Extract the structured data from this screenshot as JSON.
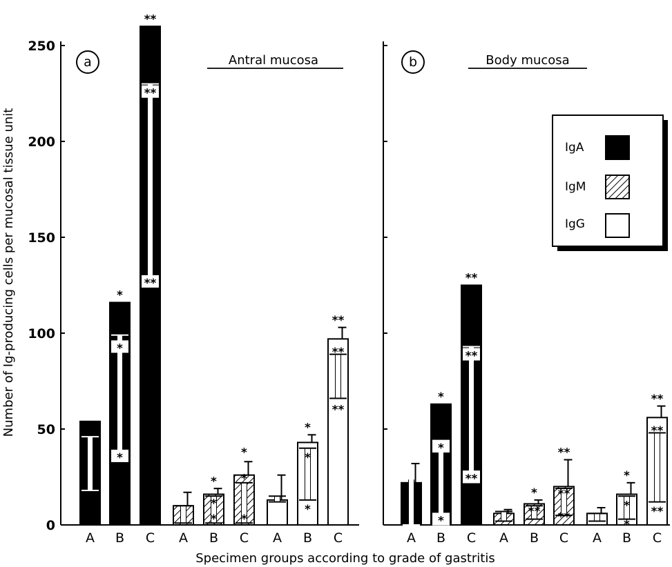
{
  "chart_data": {
    "type": "bar",
    "ylabel": "Number of Ig-producing cells per mucosal tissue unit",
    "xlabel": "Specimen groups according to grade of gastritis",
    "ylim": [
      0,
      260
    ],
    "yticks": [
      0,
      50,
      100,
      150,
      200,
      250
    ],
    "tick_labels": [
      "0",
      "50",
      "100",
      "150",
      "200",
      "250"
    ],
    "categories": [
      "A",
      "B",
      "C"
    ],
    "legend": {
      "placement": "right (panel b)",
      "items": [
        {
          "label": "IgA",
          "fill": "solid black"
        },
        {
          "label": "IgM",
          "fill": "diagonal hatching"
        },
        {
          "label": "IgG",
          "fill": "white"
        }
      ]
    },
    "panels": [
      {
        "letter": "a",
        "title": "Antral mucosa",
        "series": [
          {
            "name": "IgA",
            "values": [
              54,
              116,
              260
            ],
            "inner_bars": [
              [
                18,
                46
              ],
              [
                38,
                99
              ],
              [
                127,
                230
              ]
            ],
            "stars": [
              [],
              [
                [
                  "*",
                  117
                ],
                [
                  "*",
                  93
                ],
                [
                  "*",
                  36
                ]
              ],
              [
                [
                  "**",
                  261
                ],
                [
                  "**",
                  226
                ],
                [
                  "**",
                  127
                ]
              ]
            ]
          },
          {
            "name": "IgM",
            "values": [
              10,
              16,
              26
            ],
            "error_high": [
              17,
              19,
              33
            ],
            "inner_bars": [
              [
                1,
                10
              ],
              [
                1,
                15
              ],
              [
                1,
                22
              ]
            ],
            "stars": [
              [],
              [
                [
                  "*",
                  20
                ],
                [
                  "*",
                  12
                ],
                [
                  "*",
                  4
                ]
              ],
              [
                [
                  "*",
                  35
                ],
                [
                  "*",
                  25
                ],
                [
                  "*",
                  4
                ]
              ]
            ]
          },
          {
            "name": "IgG",
            "values": [
              13,
              43,
              97
            ],
            "error_high": [
              26,
              47,
              103
            ],
            "inner_bars": [
              [
                12,
                15
              ],
              [
                13,
                40
              ],
              [
                66,
                89
              ]
            ],
            "stars": [
              [],
              [
                [
                  "*",
                  48
                ],
                [
                  "*",
                  36
                ],
                [
                  "*",
                  9
                ]
              ],
              [
                [
                  "**",
                  104
                ],
                [
                  "**",
                  91
                ],
                [
                  "**",
                  61
                ]
              ]
            ]
          }
        ]
      },
      {
        "letter": "b",
        "title": "Body mucosa",
        "series": [
          {
            "name": "IgA",
            "values": [
              22,
              63,
              125
            ],
            "error_high": [
              32,
              63,
              125
            ],
            "inner_bars": [
              [
                0,
                24
              ],
              [
                6,
                44
              ],
              [
                28,
                93
              ]
            ],
            "stars": [
              [],
              [
                [
                  "*",
                  64
                ],
                [
                  "*",
                  41
                ],
                [
                  "*",
                  3
                ]
              ],
              [
                [
                  "**",
                  126
                ],
                [
                  "**",
                  89
                ],
                [
                  "**",
                  25
                ]
              ]
            ]
          },
          {
            "name": "IgM",
            "values": [
              6,
              11,
              20
            ],
            "error_high": [
              8,
              13,
              34
            ],
            "inner_bars": [
              [
                2,
                7
              ],
              [
                3,
                10
              ],
              [
                5,
                19
              ]
            ],
            "stars": [
              [],
              [
                [
                  "*",
                  14
                ],
                [
                  "**",
                  8
                ],
                []
              ],
              [
                [
                  "**",
                  35
                ],
                [
                  "**",
                  17
                ],
                [
                  "**",
                  5
                ]
              ]
            ]
          },
          {
            "name": "IgG",
            "values": [
              6,
              16,
              56
            ],
            "error_high": [
              9,
              22,
              62
            ],
            "inner_bars": [
              [
                2,
                6
              ],
              [
                3,
                15
              ],
              [
                12,
                48
              ]
            ],
            "stars": [
              [],
              [
                [
                  "*",
                  23
                ],
                [
                  "*",
                  11
                ],
                [
                  "*",
                  1
                ]
              ],
              [
                [
                  "**",
                  63
                ],
                [
                  "**",
                  50
                ],
                [
                  "**",
                  8
                ]
              ]
            ]
          }
        ]
      }
    ]
  }
}
